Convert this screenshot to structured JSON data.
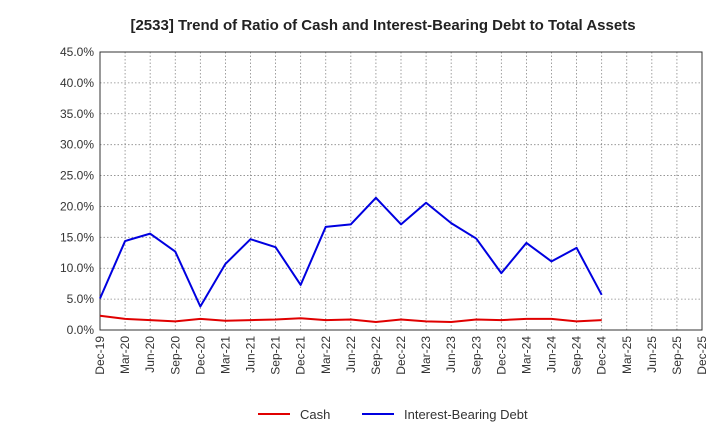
{
  "chart_data": {
    "type": "line",
    "title": "[2533]  Trend of Ratio of Cash and Interest-Bearing Debt to Total Assets",
    "xlabel": "",
    "ylabel": "",
    "x_tick_labels": [
      "Dec-19",
      "Mar-20",
      "Jun-20",
      "Sep-20",
      "Dec-20",
      "Mar-21",
      "Jun-21",
      "Sep-21",
      "Dec-21",
      "Mar-22",
      "Jun-22",
      "Sep-22",
      "Dec-22",
      "Mar-23",
      "Jun-23",
      "Sep-23",
      "Dec-23",
      "Mar-24",
      "Jun-24",
      "Sep-24",
      "Dec-24",
      "Mar-25",
      "Jun-25",
      "Sep-25",
      "Dec-25"
    ],
    "y_tick_labels": [
      "0.0%",
      "5.0%",
      "10.0%",
      "15.0%",
      "20.0%",
      "25.0%",
      "30.0%",
      "35.0%",
      "40.0%",
      "45.0%"
    ],
    "ylim": [
      0,
      45
    ],
    "grid": true,
    "legend_position": "bottom",
    "series": [
      {
        "name": "Cash",
        "color": "#e00000",
        "values": [
          2.3,
          1.8,
          1.6,
          1.4,
          1.8,
          1.5,
          1.6,
          1.7,
          1.9,
          1.6,
          1.7,
          1.3,
          1.7,
          1.4,
          1.3,
          1.7,
          1.6,
          1.8,
          1.8,
          1.4,
          1.6
        ]
      },
      {
        "name": "Interest-Bearing Debt",
        "color": "#0000e0",
        "values": [
          5.1,
          14.4,
          15.6,
          12.7,
          3.8,
          10.7,
          14.7,
          13.4,
          7.3,
          16.7,
          17.1,
          21.4,
          17.1,
          20.6,
          17.3,
          14.8,
          9.2,
          14.1,
          11.1,
          13.3,
          5.7
        ]
      }
    ]
  }
}
